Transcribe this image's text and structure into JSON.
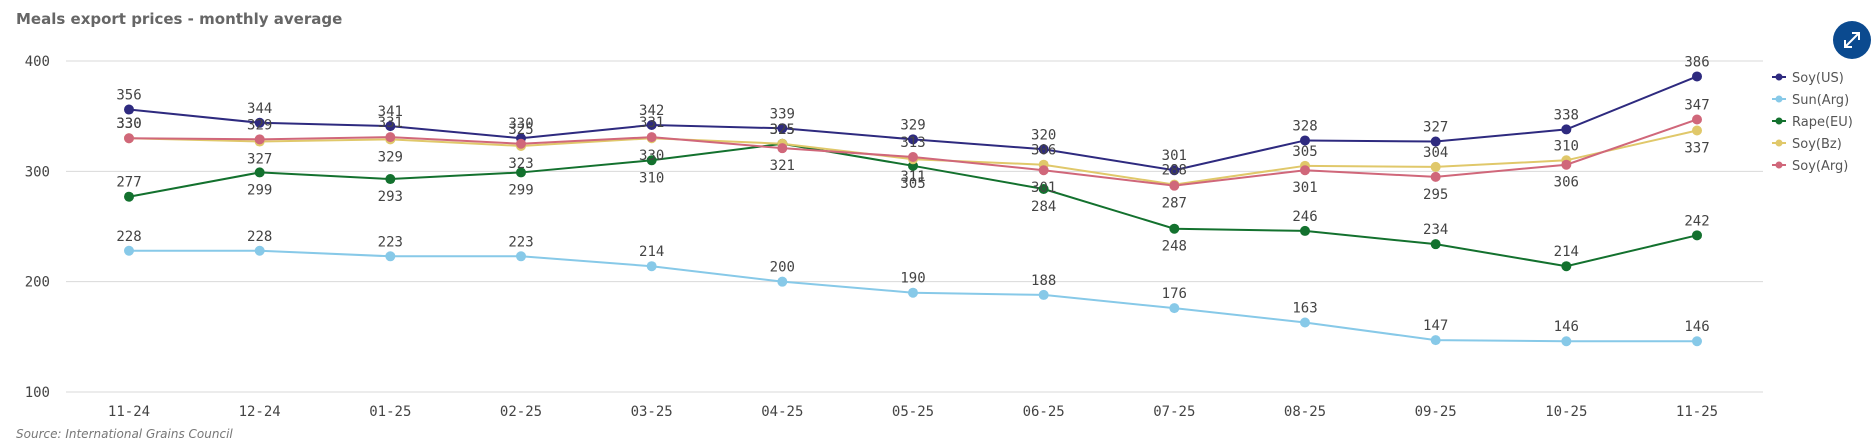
{
  "chart_data": {
    "type": "line",
    "title": "Meals export prices - monthly average",
    "source": "Source: International Grains Council",
    "categories": [
      "11-24",
      "12-24",
      "01-25",
      "02-25",
      "03-25",
      "04-25",
      "05-25",
      "06-25",
      "07-25",
      "08-25",
      "09-25",
      "10-25",
      "11-25"
    ],
    "series": [
      {
        "name": "Soy(US)",
        "color": "#2e2a7f",
        "values": [
          356,
          344,
          341,
          330,
          342,
          339,
          329,
          320,
          301,
          328,
          327,
          338,
          386
        ]
      },
      {
        "name": "Sun(Arg)",
        "color": "#87c9e8",
        "values": [
          228,
          228,
          223,
          223,
          214,
          200,
          190,
          188,
          176,
          163,
          147,
          146,
          146
        ]
      },
      {
        "name": "Rape(EU)",
        "color": "#13712e",
        "values": [
          277,
          299,
          293,
          299,
          310,
          325,
          305,
          284,
          248,
          246,
          234,
          214,
          242
        ]
      },
      {
        "name": "Soy(Bz)",
        "color": "#e0c86a",
        "values": [
          330,
          327,
          329,
          323,
          330,
          325,
          311,
          306,
          288,
          305,
          304,
          310,
          337
        ]
      },
      {
        "name": "Soy(Arg)",
        "color": "#d0677a",
        "values": [
          330,
          329,
          331,
          325,
          331,
          321,
          313,
          301,
          287,
          301,
          295,
          306,
          347
        ]
      }
    ],
    "ylim": [
      100,
      400
    ],
    "yticks": [
      100,
      200,
      300,
      400
    ],
    "grid": true,
    "legend": "right"
  }
}
